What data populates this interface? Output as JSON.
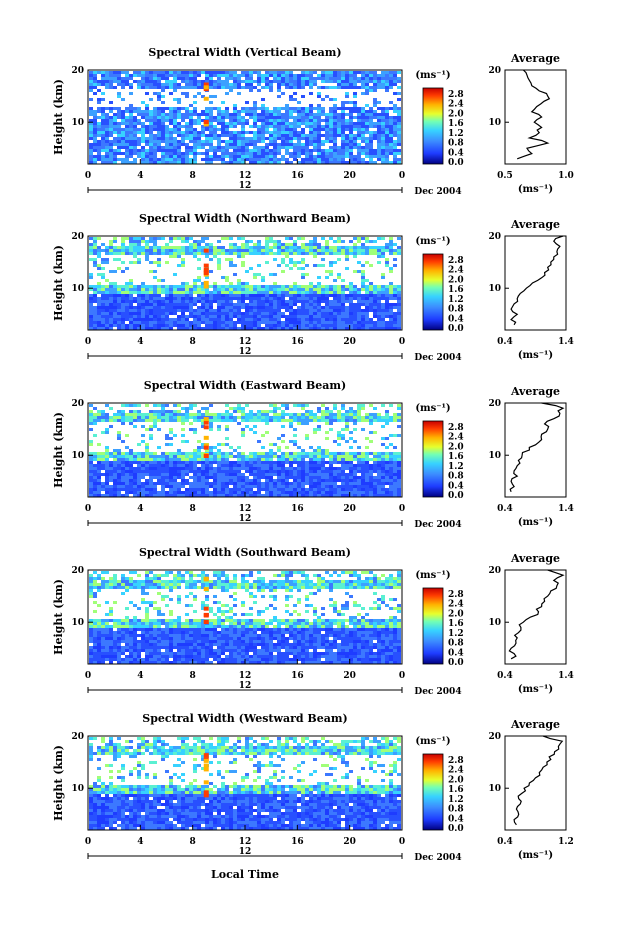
{
  "figure": {
    "xlabel": "Local Time",
    "x_ticks": [
      "0",
      "4",
      "8",
      "12",
      "16",
      "20",
      "0"
    ],
    "date_marker": "12",
    "date_label": "Dec 2004",
    "ylabel": "Height (km)",
    "y_ticks": [
      "20",
      "10"
    ],
    "colorbar_unit": "(ms⁻¹)",
    "colorbar_ticks": [
      "2.8",
      "2.4",
      "2.0",
      "1.6",
      "1.2",
      "0.8",
      "0.4",
      "0.0"
    ],
    "avg_title": "Average",
    "avg_unit": "(ms⁻¹)",
    "avg_y_ticks": [
      "20",
      "10"
    ]
  },
  "chart_data": [
    {
      "type": "heatmap",
      "title": "Spectral Width (Vertical Beam)",
      "xlabel": "Local Time",
      "ylabel": "Height (km)",
      "unit": "ms^-1",
      "xlim": [
        0,
        24
      ],
      "ylim": [
        2,
        20
      ],
      "clim": [
        0.0,
        3.0
      ],
      "avg_profile": {
        "xlim": [
          0.5,
          1.0
        ],
        "x_ticks": [
          "0.5",
          "1.0"
        ],
        "height": [
          3,
          4,
          5,
          6,
          7,
          8,
          9,
          10,
          11,
          12,
          13,
          14,
          15,
          16,
          17,
          18,
          19,
          20
        ],
        "values": [
          0.6,
          0.72,
          0.68,
          0.85,
          0.7,
          0.78,
          0.8,
          0.74,
          0.8,
          0.72,
          0.76,
          0.82,
          0.85,
          0.78,
          0.72,
          0.7,
          0.68,
          0.65
        ]
      }
    },
    {
      "type": "heatmap",
      "title": "Spectral Width (Northward Beam)",
      "xlabel": "Local Time",
      "ylabel": "Height (km)",
      "unit": "ms^-1",
      "xlim": [
        0,
        24
      ],
      "ylim": [
        2,
        20
      ],
      "clim": [
        0.0,
        3.0
      ],
      "avg_profile": {
        "xlim": [
          0.4,
          1.4
        ],
        "x_ticks": [
          "0.4",
          "1.4"
        ],
        "height": [
          3,
          4,
          5,
          6,
          7,
          8,
          9,
          10,
          11,
          12,
          13,
          14,
          15,
          16,
          17,
          18,
          19,
          20
        ],
        "values": [
          0.55,
          0.5,
          0.6,
          0.5,
          0.55,
          0.6,
          0.65,
          0.75,
          0.85,
          1.0,
          1.05,
          1.1,
          1.15,
          1.2,
          1.25,
          1.3,
          1.2,
          1.35
        ]
      }
    },
    {
      "type": "heatmap",
      "title": "Spectral Width (Eastward Beam)",
      "xlabel": "Local Time",
      "ylabel": "Height (km)",
      "unit": "ms^-1",
      "xlim": [
        0,
        24
      ],
      "ylim": [
        2,
        20
      ],
      "clim": [
        0.0,
        3.0
      ],
      "avg_profile": {
        "xlim": [
          0.4,
          1.4
        ],
        "x_ticks": [
          "0.4",
          "1.4"
        ],
        "height": [
          3,
          4,
          5,
          6,
          7,
          8,
          9,
          10,
          11,
          12,
          13,
          14,
          15,
          16,
          17,
          18,
          19,
          20
        ],
        "values": [
          0.5,
          0.55,
          0.5,
          0.6,
          0.55,
          0.6,
          0.62,
          0.68,
          0.8,
          0.9,
          1.0,
          1.0,
          1.1,
          1.05,
          1.2,
          1.3,
          1.35,
          1.0
        ]
      }
    },
    {
      "type": "heatmap",
      "title": "Spectral Width (Southward Beam)",
      "xlabel": "Local Time",
      "ylabel": "Height (km)",
      "unit": "ms^-1",
      "xlim": [
        0,
        24
      ],
      "ylim": [
        2,
        20
      ],
      "clim": [
        0.0,
        3.0
      ],
      "avg_profile": {
        "xlim": [
          0.4,
          1.4
        ],
        "x_ticks": [
          "0.4",
          "1.4"
        ],
        "height": [
          3,
          4,
          5,
          6,
          7,
          8,
          9,
          10,
          11,
          12,
          13,
          14,
          15,
          16,
          17,
          18,
          19,
          20
        ],
        "values": [
          0.5,
          0.55,
          0.5,
          0.58,
          0.6,
          0.62,
          0.66,
          0.7,
          0.82,
          0.95,
          1.0,
          1.05,
          1.1,
          1.15,
          1.25,
          1.2,
          1.35,
          1.1
        ]
      }
    },
    {
      "type": "heatmap",
      "title": "Spectral Width (Westward Beam)",
      "xlabel": "Local Time",
      "ylabel": "Height (km)",
      "unit": "ms^-1",
      "xlim": [
        0,
        24
      ],
      "ylim": [
        2,
        20
      ],
      "clim": [
        0.0,
        3.0
      ],
      "avg_profile": {
        "xlim": [
          0.4,
          1.2
        ],
        "x_ticks": [
          "0.4",
          "1.2"
        ],
        "height": [
          3,
          4,
          5,
          6,
          7,
          8,
          9,
          10,
          11,
          12,
          13,
          14,
          15,
          16,
          17,
          18,
          19,
          20
        ],
        "values": [
          0.55,
          0.52,
          0.58,
          0.55,
          0.6,
          0.58,
          0.62,
          0.65,
          0.72,
          0.8,
          0.85,
          0.9,
          0.95,
          0.98,
          1.05,
          1.1,
          1.15,
          0.9
        ]
      }
    }
  ]
}
